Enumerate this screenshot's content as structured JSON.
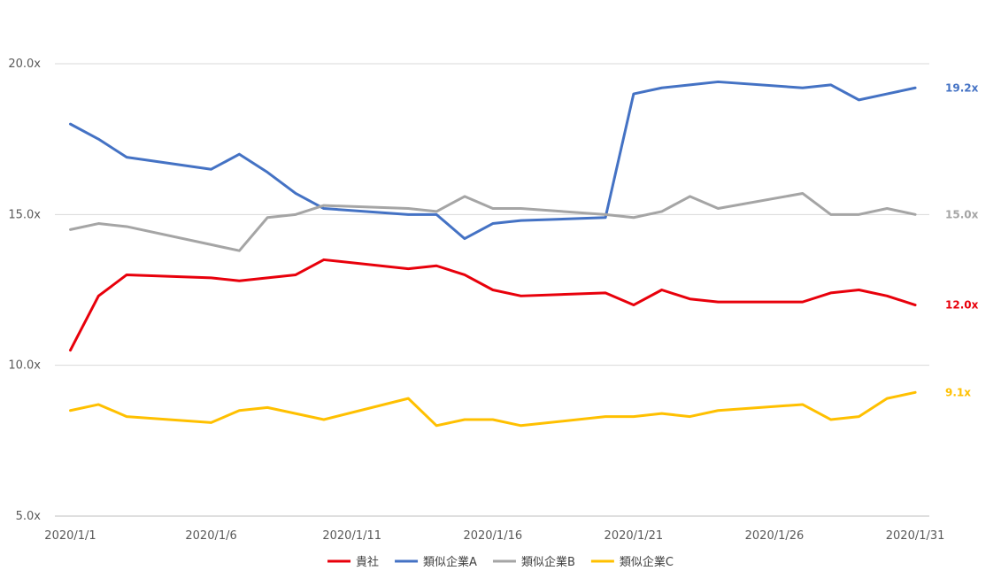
{
  "chart_data": {
    "type": "line",
    "title": "",
    "xlabel": "",
    "ylabel": "",
    "ylim": [
      5.0,
      20.0
    ],
    "yticks": [
      "5.0x",
      "10.0x",
      "15.0x",
      "20.0x"
    ],
    "y_tick_values": [
      5,
      10,
      15,
      20
    ],
    "grid": true,
    "legend": "bottom",
    "x": [
      1,
      2,
      3,
      6,
      7,
      8,
      9,
      10,
      14,
      15,
      16,
      17,
      20,
      21,
      22,
      23,
      24,
      27,
      28,
      29,
      30,
      31
    ],
    "xticks": [
      "2020/1/1",
      "2020/1/6",
      "2020/1/11",
      "2020/1/16",
      "2020/1/21",
      "2020/1/26",
      "2020/1/31"
    ],
    "xtick_values": [
      1,
      6,
      11,
      16,
      21,
      26,
      31
    ],
    "series": [
      {
        "name": "貴社",
        "color": "#e8000b",
        "values": [
          10.5,
          12.3,
          13.0,
          12.9,
          12.8,
          12.9,
          13.0,
          13.5,
          13.2,
          13.3,
          13.0,
          12.5,
          12.3,
          12.4,
          12.0,
          12.5,
          12.2,
          12.1,
          12.1,
          12.4,
          12.5,
          12.3,
          12.0
        ],
        "x": [
          1,
          2,
          3,
          6,
          7,
          8,
          9,
          10,
          13,
          14,
          15,
          16,
          17,
          20,
          21,
          22,
          23,
          24,
          27,
          28,
          29,
          30,
          31
        ],
        "end_label": "12.0x"
      },
      {
        "name": "類似企業A",
        "color": "#4472c4",
        "values": [
          18.0,
          17.5,
          16.9,
          16.5,
          17.0,
          16.4,
          15.7,
          15.2,
          15.0,
          15.0,
          14.2,
          14.7,
          14.8,
          14.9,
          19.0,
          19.2,
          19.3,
          19.4,
          19.2,
          19.3,
          18.8,
          19.0,
          19.2
        ],
        "x": [
          1,
          2,
          3,
          6,
          7,
          8,
          9,
          10,
          13,
          14,
          15,
          16,
          17,
          20,
          21,
          22,
          23,
          24,
          27,
          28,
          29,
          30,
          31
        ],
        "end_label": "19.2x"
      },
      {
        "name": "類似企業B",
        "color": "#a5a5a5",
        "values": [
          14.5,
          14.7,
          14.6,
          14.0,
          13.8,
          14.9,
          15.0,
          15.3,
          15.2,
          15.1,
          15.6,
          15.2,
          15.2,
          15.0,
          14.9,
          15.1,
          15.6,
          15.2,
          15.7,
          15.0,
          15.0,
          15.2,
          15.0
        ],
        "x": [
          1,
          2,
          3,
          6,
          7,
          8,
          9,
          10,
          13,
          14,
          15,
          16,
          17,
          20,
          21,
          22,
          23,
          24,
          27,
          28,
          29,
          30,
          31
        ],
        "end_label": "15.0x"
      },
      {
        "name": "類似企業C",
        "color": "#ffc000",
        "values": [
          8.5,
          8.7,
          8.3,
          8.1,
          8.5,
          8.6,
          8.2,
          8.9,
          8.0,
          8.2,
          8.2,
          8.0,
          8.3,
          8.3,
          8.4,
          8.3,
          8.5,
          8.7,
          8.2,
          8.3,
          8.9,
          9.1
        ],
        "x": [
          1,
          2,
          3,
          6,
          7,
          8,
          10,
          13,
          14,
          15,
          16,
          17,
          20,
          21,
          22,
          23,
          24,
          27,
          28,
          29,
          30,
          31
        ],
        "end_label": "9.1x"
      }
    ]
  }
}
